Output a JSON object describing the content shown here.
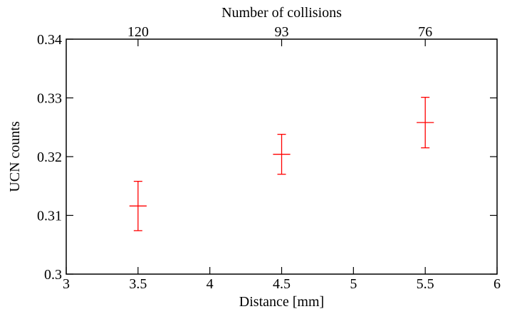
{
  "chart_data": {
    "type": "scatter",
    "xlabel": "Distance [mm]",
    "ylabel": "UCN counts",
    "top_axis_label": "Number of collisions",
    "xlim": [
      3,
      6
    ],
    "ylim": [
      0.3,
      0.34
    ],
    "xticks": [
      3,
      3.5,
      4,
      4.5,
      5,
      5.5,
      6
    ],
    "xtick_labels": [
      "3",
      "3.5",
      "4",
      "4.5",
      "5",
      "5.5",
      "6"
    ],
    "yticks": [
      0.3,
      0.31,
      0.32,
      0.33,
      0.34
    ],
    "ytick_labels": [
      "0.3",
      "0.31",
      "0.32",
      "0.33",
      "0.34"
    ],
    "top_ticks": [
      {
        "x": 3.5,
        "label": "120"
      },
      {
        "x": 4.5,
        "label": "93"
      },
      {
        "x": 5.5,
        "label": "76"
      }
    ],
    "series": [
      {
        "color": "#ff0000",
        "points": [
          {
            "x": 3.5,
            "y": 0.3116,
            "yerr": 0.0042,
            "xerr": 0.06
          },
          {
            "x": 4.5,
            "y": 0.3204,
            "yerr": 0.0034,
            "xerr": 0.06
          },
          {
            "x": 5.5,
            "y": 0.3258,
            "yerr": 0.0043,
            "xerr": 0.06
          }
        ]
      }
    ],
    "grid": false,
    "legend": "none"
  }
}
